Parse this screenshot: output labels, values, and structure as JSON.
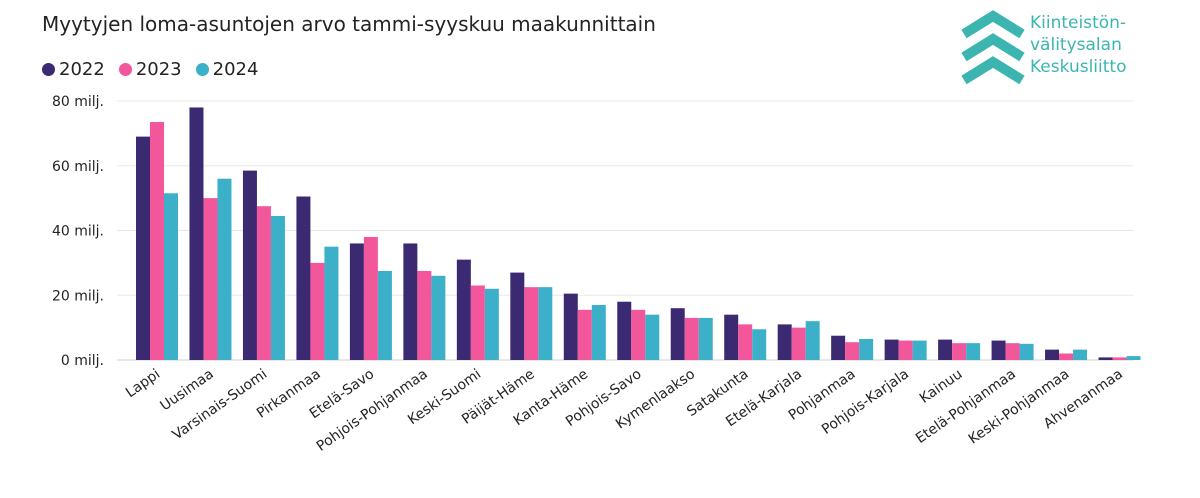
{
  "title": "Myytyjen loma-asuntojen arvo tammi-syyskuu maakunnittain",
  "logo": {
    "lines": [
      "Kiinteistön-",
      "välitysalan",
      "Keskusliitto"
    ],
    "color": "#3cb5b1"
  },
  "chart_data": {
    "type": "bar",
    "title": "Myytyjen loma-asuntojen arvo tammi-syyskuu maakunnittain",
    "xlabel": "",
    "ylabel": "",
    "ylim": [
      0,
      80
    ],
    "yticks": [
      {
        "value": 0,
        "label": "0 milj."
      },
      {
        "value": 20,
        "label": "20 milj."
      },
      {
        "value": 40,
        "label": "40 milj."
      },
      {
        "value": 60,
        "label": "60 milj."
      },
      {
        "value": 80,
        "label": "80 milj."
      }
    ],
    "grid": true,
    "legend": "top-left",
    "categories": [
      "Lappi",
      "Uusimaa",
      "Varsinais-Suomi",
      "Pirkanmaa",
      "Etelä-Savo",
      "Pohjois-Pohjanmaa",
      "Keski-Suomi",
      "Päijät-Häme",
      "Kanta-Häme",
      "Pohjois-Savo",
      "Kymenlaakso",
      "Satakunta",
      "Etelä-Karjala",
      "Pohjanmaa",
      "Pohjois-Karjala",
      "Kainuu",
      "Etelä-Pohjanmaa",
      "Keski-Pohjanmaa",
      "Ahvenanmaa"
    ],
    "series": [
      {
        "name": "2022",
        "color": "#3b2a72",
        "values": [
          69,
          78,
          58.5,
          50.5,
          36,
          36,
          31,
          27,
          20.5,
          18,
          16,
          14,
          11,
          7.5,
          6.3,
          6.3,
          6,
          3.2,
          0.8
        ]
      },
      {
        "name": "2023",
        "color": "#f2569b",
        "values": [
          73.5,
          50,
          47.5,
          30,
          38,
          27.5,
          23,
          22.5,
          15.5,
          15.5,
          13,
          11,
          10,
          5.5,
          6,
          5.2,
          5.2,
          2,
          0.8
        ]
      },
      {
        "name": "2024",
        "color": "#3cb0c8",
        "values": [
          51.5,
          56,
          44.5,
          35,
          27.5,
          26,
          22,
          22.5,
          17,
          14,
          13,
          9.5,
          12,
          6.5,
          6,
          5.2,
          5,
          3.2,
          1.2
        ]
      }
    ]
  }
}
